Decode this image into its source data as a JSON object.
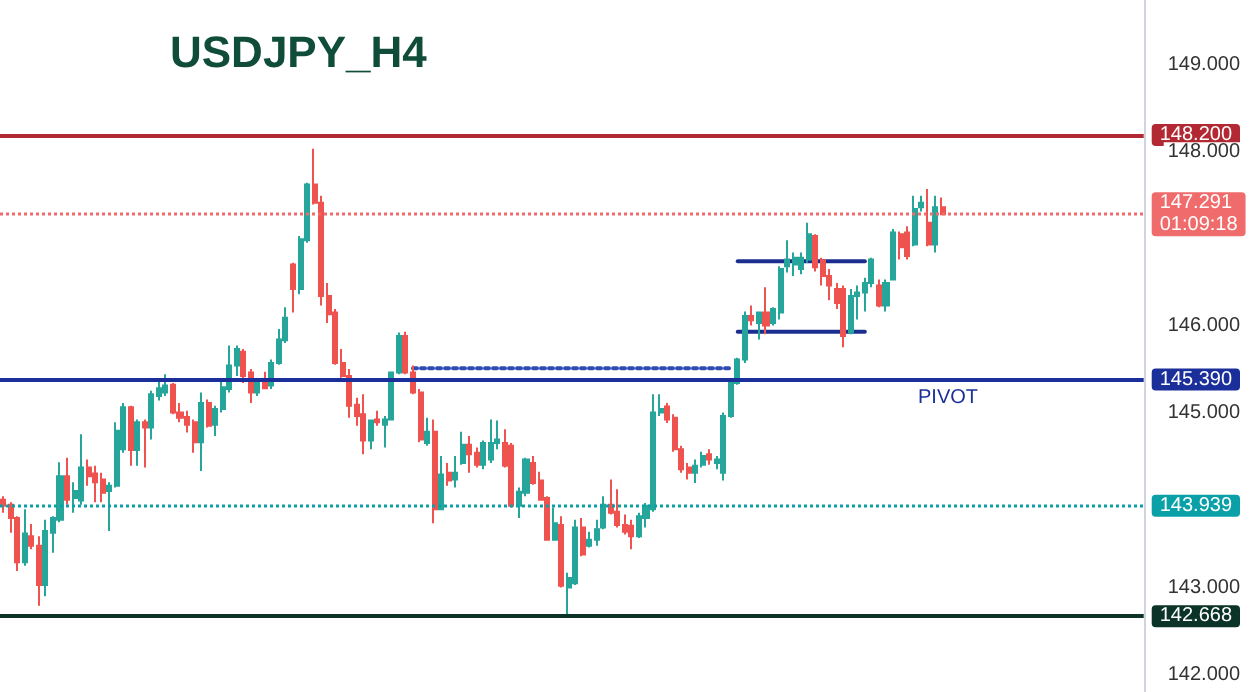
{
  "chart_data": {
    "type": "candlestick",
    "title": "USDJPY_H4",
    "categories": [
      null,
      null,
      null,
      null,
      null,
      null,
      null,
      null,
      null,
      null,
      null,
      null,
      null,
      null,
      null,
      null,
      null,
      null,
      null,
      null,
      null,
      null,
      null,
      null,
      null,
      null,
      null,
      null,
      null,
      null,
      null,
      null,
      null,
      null,
      null,
      null,
      null,
      null,
      null,
      null,
      null,
      null,
      null,
      null,
      null,
      null,
      null,
      null,
      null,
      null,
      null,
      null,
      null,
      null,
      null,
      null,
      null,
      null,
      null,
      null,
      null,
      null,
      null,
      null,
      null,
      null,
      null,
      null,
      null,
      null,
      null,
      null,
      null,
      null,
      null,
      null,
      null,
      null,
      null,
      null,
      null,
      null,
      null,
      null,
      null,
      null,
      null,
      null,
      null,
      null,
      null,
      null,
      null,
      null,
      null,
      null,
      null,
      null,
      null,
      null,
      null,
      null,
      null,
      null,
      null,
      null,
      null,
      null,
      null,
      null,
      null,
      null,
      null,
      null,
      null,
      null,
      null,
      null,
      null,
      null,
      null,
      null,
      null,
      null,
      null,
      null,
      null,
      null,
      null,
      null,
      null,
      null,
      null,
      null,
      null,
      null,
      null,
      null,
      null,
      null,
      null,
      null,
      null,
      null,
      null,
      null,
      null,
      null,
      null,
      null,
      null,
      null,
      null,
      null,
      null,
      null,
      null,
      null,
      null,
      null,
      null,
      null
    ],
    "colors": [
      "#ef5350",
      "#ef5350",
      "#ef5350",
      "#26a69a",
      "#ef5350",
      "#ef5350",
      "#26a69a",
      "#26a69a",
      "#26a69a",
      "#ef5350",
      "#26a69a",
      "#26a69a",
      "#ef5350",
      "#ef5350",
      "#ef5350",
      "#26a69a",
      "#26a69a",
      "#26a69a",
      "#ef5350",
      "#26a69a",
      "#ef5350",
      "#26a69a",
      "#26a69a",
      "#26a69a",
      "#ef5350",
      "#ef5350",
      "#ef5350",
      "#ef5350",
      "#26a69a",
      "#ef5350",
      "#26a69a",
      "#26a69a",
      "#26a69a",
      "#26a69a",
      "#ef5350",
      "#ef5350",
      "#26a69a",
      "#ef5350",
      "#26a69a",
      "#26a69a",
      "#26a69a",
      "#ef5350",
      "#26a69a",
      "#26a69a",
      "#ef5350",
      "#ef5350",
      "#ef5350",
      "#ef5350",
      "#ef5350",
      "#ef5350",
      "#ef5350",
      "#ef5350",
      "#26a69a",
      "#ef5350",
      "#26a69a",
      "#26a69a",
      "#26a69a",
      "#ef5350",
      "#ef5350",
      "#ef5350",
      "#26a69a",
      "#ef5350",
      "#26a69a",
      "#ef5350",
      "#26a69a",
      "#26a69a",
      "#ef5350",
      "#ef5350",
      "#26a69a",
      "#26a69a",
      "#26a69a",
      "#ef5350",
      "#ef5350",
      "#26a69a",
      "#26a69a",
      "#ef5350",
      "#ef5350",
      "#ef5350",
      "#26a69a",
      "#ef5350",
      "#26a69a",
      "#26a69a",
      "#ef5350",
      "#26a69a",
      "#26a69a",
      "#26a69a",
      "#ef5350",
      "#ef5350",
      "#ef5350",
      "#ef5350",
      "#26a69a",
      "#26a69a",
      "#26a69a",
      "#26a69a",
      "#ef5350",
      "#ef5350",
      "#ef5350",
      "#ef5350",
      "#26a69a",
      "#26a69a",
      "#ef5350",
      "#26a69a",
      "#26a69a",
      "#26a69a",
      "#26a69a",
      "#26a69a",
      "#ef5350",
      "#26a69a",
      "#ef5350",
      "#26a69a",
      "#26a69a",
      "#26a69a",
      "#26a69a",
      "#26a69a",
      "#26a69a",
      "#ef5350",
      "#ef5350",
      "#ef5350",
      "#ef5350",
      "#ef5350",
      "#26a69a",
      "#26a69a",
      "#26a69a",
      "#26a69a",
      "#ef5350",
      "#26a69a",
      "#26a69a",
      "#ef5350",
      "#ef5350",
      "#26a69a",
      "#26a69a",
      "#ef5350",
      "#26a69a",
      "#ef5350",
      null,
      null,
      null,
      null,
      null,
      null,
      null,
      null,
      null,
      null,
      null,
      null,
      null,
      null,
      null,
      null,
      null,
      null,
      null,
      null,
      null,
      null,
      null,
      null,
      null,
      null,
      null,
      null
    ],
    "ohlc": [
      [
        144.01,
        144.05,
        143.86,
        143.94
      ],
      [
        143.95,
        143.98,
        143.63,
        143.8
      ],
      [
        143.8,
        143.82,
        143.19,
        143.29
      ],
      [
        143.29,
        143.9,
        143.25,
        143.62
      ],
      [
        143.59,
        143.73,
        143.44,
        143.48
      ],
      [
        143.48,
        143.59,
        142.79,
        143.03
      ],
      [
        143.03,
        143.78,
        142.9,
        143.65
      ],
      [
        143.63,
        143.82,
        143.4,
        143.8
      ],
      [
        143.78,
        144.44,
        143.75,
        144.28
      ],
      [
        144.28,
        144.49,
        143.95,
        144.01
      ],
      [
        144.03,
        144.21,
        143.86,
        144.11
      ],
      [
        144.0,
        144.76,
        143.95,
        144.38
      ],
      [
        144.38,
        144.47,
        144.17,
        144.28
      ],
      [
        144.31,
        144.4,
        143.98,
        144.21
      ],
      [
        144.24,
        144.32,
        143.98,
        144.09
      ],
      [
        144.11,
        144.21,
        143.65,
        144.17
      ],
      [
        144.17,
        144.9,
        144.15,
        144.8
      ],
      [
        144.59,
        145.12,
        144.55,
        145.07
      ],
      [
        145.07,
        145.09,
        144.4,
        144.58
      ],
      [
        144.58,
        144.93,
        144.4,
        144.9
      ],
      [
        144.9,
        144.93,
        144.38,
        144.84
      ],
      [
        144.84,
        145.26,
        144.7,
        145.22
      ],
      [
        145.2,
        145.38,
        145.15,
        145.29
      ],
      [
        145.24,
        145.45,
        145.2,
        145.32
      ],
      [
        145.33,
        145.35,
        144.99,
        145.01
      ],
      [
        145.01,
        145.12,
        144.9,
        144.95
      ],
      [
        144.96,
        145.03,
        144.78,
        144.87
      ],
      [
        144.9,
        144.93,
        144.55,
        144.67
      ],
      [
        144.67,
        145.24,
        144.34,
        145.12
      ],
      [
        145.12,
        145.16,
        144.84,
        144.86
      ],
      [
        144.87,
        145.09,
        144.74,
        145.05
      ],
      [
        145.05,
        145.39,
        145.01,
        145.3
      ],
      [
        145.28,
        145.78,
        145.24,
        145.55
      ],
      [
        145.55,
        145.78,
        145.43,
        145.74
      ],
      [
        145.71,
        145.74,
        145.35,
        145.43
      ],
      [
        145.47,
        145.51,
        145.12,
        145.24
      ],
      [
        145.24,
        145.39,
        145.2,
        145.35
      ],
      [
        145.35,
        145.48,
        145.28,
        145.29
      ],
      [
        145.32,
        145.62,
        145.28,
        145.58
      ],
      [
        145.58,
        145.97,
        145.56,
        145.85
      ],
      [
        145.84,
        146.22,
        145.81,
        146.1
      ],
      [
        146.71,
        146.73,
        146.16,
        146.43
      ],
      [
        146.43,
        147.04,
        146.37,
        147.0
      ],
      [
        146.99,
        147.65,
        146.96,
        147.63
      ],
      [
        147.63,
        148.04,
        147.4,
        147.42
      ],
      [
        147.42,
        147.5,
        146.24,
        146.35
      ],
      [
        146.35,
        146.5,
        146.04,
        146.14
      ],
      [
        146.16,
        146.2,
        145.56,
        145.58
      ],
      [
        145.58,
        145.74,
        145.41,
        145.43
      ],
      [
        145.43,
        145.51,
        144.95,
        145.09
      ],
      [
        145.1,
        145.18,
        144.86,
        144.97
      ],
      [
        144.99,
        145.22,
        144.53,
        144.69
      ],
      [
        144.69,
        144.93,
        144.59,
        144.92
      ],
      [
        144.93,
        145.03,
        144.86,
        144.9
      ],
      [
        144.87,
        144.97,
        144.61,
        144.93
      ],
      [
        144.93,
        145.48,
        144.92,
        145.47
      ],
      [
        145.47,
        145.93,
        145.45,
        145.89
      ],
      [
        145.89,
        145.94,
        145.45,
        145.47
      ],
      [
        145.47,
        145.55,
        145.22,
        145.24
      ],
      [
        145.24,
        145.28,
        144.67,
        144.7
      ],
      [
        144.66,
        144.95,
        144.63,
        144.79
      ],
      [
        144.79,
        144.93,
        143.74,
        143.9
      ],
      [
        143.9,
        144.51,
        143.9,
        144.3
      ],
      [
        144.32,
        144.43,
        144.17,
        144.23
      ],
      [
        144.24,
        144.51,
        144.15,
        144.32
      ],
      [
        144.43,
        144.79,
        144.41,
        144.64
      ],
      [
        144.64,
        144.74,
        144.32,
        144.53
      ],
      [
        144.55,
        144.61,
        144.38,
        144.41
      ],
      [
        144.41,
        144.69,
        144.36,
        144.66
      ],
      [
        144.47,
        144.93,
        144.43,
        144.66
      ],
      [
        144.66,
        144.92,
        144.59,
        144.7
      ],
      [
        144.66,
        144.82,
        144.38,
        144.4
      ],
      [
        144.63,
        144.66,
        143.92,
        143.94
      ],
      [
        143.94,
        144.15,
        143.8,
        144.1
      ],
      [
        144.09,
        144.49,
        144.05,
        144.47
      ],
      [
        144.43,
        144.51,
        144.18,
        144.2
      ],
      [
        144.23,
        144.33,
        144.0,
        144.01
      ],
      [
        144.03,
        144.05,
        143.54,
        143.55
      ],
      [
        143.55,
        143.92,
        143.54,
        143.74
      ],
      [
        143.72,
        143.82,
        143.0,
        143.02
      ],
      [
        143.0,
        143.17,
        142.67,
        143.11
      ],
      [
        143.05,
        143.78,
        143.03,
        143.69
      ],
      [
        143.69,
        143.8,
        143.36,
        143.38
      ],
      [
        143.48,
        143.64,
        143.46,
        143.55
      ],
      [
        143.55,
        143.78,
        143.48,
        143.67
      ],
      [
        143.69,
        144.05,
        143.67,
        143.95
      ],
      [
        143.95,
        144.24,
        143.84,
        143.86
      ],
      [
        143.87,
        144.13,
        143.69,
        143.72
      ],
      [
        143.72,
        143.84,
        143.61,
        143.64
      ],
      [
        143.71,
        143.78,
        143.44,
        143.59
      ],
      [
        143.59,
        143.86,
        143.57,
        143.82
      ],
      [
        143.8,
        143.97,
        143.69,
        143.94
      ],
      [
        143.9,
        145.22,
        143.87,
        145.01
      ],
      [
        145.01,
        145.22,
        144.97,
        145.05
      ],
      [
        145.08,
        145.12,
        144.89,
        144.93
      ],
      [
        144.95,
        144.99,
        144.56,
        144.59
      ],
      [
        144.59,
        144.63,
        144.32,
        144.36
      ],
      [
        144.38,
        144.43,
        144.24,
        144.32
      ],
      [
        144.32,
        144.47,
        144.2,
        144.4
      ],
      [
        144.41,
        144.56,
        144.38,
        144.51
      ],
      [
        144.53,
        144.59,
        144.41,
        144.47
      ],
      [
        144.43,
        144.51,
        144.36,
        144.47
      ],
      [
        144.32,
        145.01,
        144.23,
        144.97
      ],
      [
        144.97,
        145.39,
        144.95,
        145.35
      ],
      [
        145.35,
        145.64,
        145.33,
        145.62
      ],
      [
        145.62,
        146.17,
        145.58,
        146.12
      ],
      [
        146.12,
        146.24,
        146.01,
        146.07
      ],
      [
        146.04,
        146.17,
        145.85,
        146.16
      ],
      [
        146.16,
        146.45,
        145.91,
        146.01
      ],
      [
        146.04,
        146.22,
        146.01,
        146.2
      ],
      [
        146.16,
        146.69,
        146.08,
        146.66
      ],
      [
        146.69,
        146.99,
        146.62,
        146.77
      ],
      [
        146.71,
        146.85,
        146.58,
        146.79
      ],
      [
        146.66,
        146.85,
        146.6,
        146.79
      ],
      [
        146.77,
        147.19,
        146.73,
        147.06
      ],
      [
        147.04,
        147.06,
        146.63,
        146.68
      ],
      [
        146.76,
        146.79,
        146.47,
        146.58
      ],
      [
        146.58,
        146.66,
        146.3,
        146.47
      ],
      [
        146.43,
        146.5,
        146.2,
        146.27
      ],
      [
        146.43,
        146.47,
        145.76,
        145.89
      ],
      [
        145.93,
        146.43,
        145.91,
        146.35
      ],
      [
        146.35,
        146.47,
        146.08,
        146.39
      ],
      [
        146.39,
        146.56,
        146.17,
        146.5
      ],
      [
        146.5,
        146.79,
        146.45,
        146.77
      ],
      [
        146.47,
        146.54,
        146.22,
        146.24
      ],
      [
        146.24,
        146.54,
        146.17,
        146.5
      ],
      [
        146.54,
        147.12,
        146.53,
        147.08
      ],
      [
        147.06,
        147.09,
        146.77,
        146.91
      ],
      [
        147.08,
        147.15,
        146.77,
        146.81
      ],
      [
        146.94,
        147.5,
        146.92,
        147.35
      ],
      [
        147.37,
        147.5,
        147.32,
        147.42
      ],
      [
        147.19,
        147.58,
        146.92,
        146.94
      ],
      [
        146.94,
        147.5,
        146.85,
        147.37
      ],
      [
        147.37,
        147.48,
        147.29,
        147.29
      ],
      null,
      null,
      null,
      null,
      null,
      null,
      null,
      null,
      null,
      null,
      null,
      null,
      null,
      null,
      null,
      null,
      null,
      null,
      null,
      null,
      null,
      null,
      null,
      null,
      null,
      null,
      null,
      null
    ],
    "series": [
      {
        "type": "line",
        "color": "#2e4bb3",
        "line_style": "dotted",
        "values": [
          null,
          null,
          null,
          null,
          null,
          null,
          null,
          null,
          null,
          null,
          null,
          null,
          null,
          null,
          null,
          null,
          null,
          null,
          null,
          null,
          null,
          null,
          null,
          null,
          null,
          null,
          null,
          null,
          null,
          null,
          null,
          null,
          null,
          null,
          null,
          null,
          null,
          null,
          null,
          null,
          null,
          null,
          null,
          null,
          null,
          null,
          null,
          null,
          null,
          null,
          null,
          null,
          null,
          null,
          null,
          null,
          null,
          null,
          145.52,
          145.52,
          145.52,
          145.52,
          145.52,
          145.52,
          145.52,
          145.52,
          145.52,
          145.52,
          145.52,
          145.52,
          145.52,
          145.52,
          145.52,
          145.52,
          145.52,
          145.52,
          145.52,
          145.52,
          145.52,
          145.52,
          145.52,
          145.52,
          145.52,
          145.52,
          145.52,
          145.52,
          145.52,
          145.52,
          145.52,
          145.52,
          145.52,
          145.52,
          145.52,
          145.52,
          145.52,
          145.52,
          145.52,
          145.52,
          145.52,
          145.52,
          145.52,
          145.52,
          145.52,
          145.52,
          null,
          null,
          null,
          null,
          null,
          null,
          null,
          null,
          null,
          null,
          null,
          null,
          null,
          null,
          null,
          null,
          null,
          null,
          null,
          null,
          null,
          null,
          null,
          null,
          null,
          null,
          null,
          null,
          null,
          null,
          null,
          null,
          null,
          null,
          null,
          null,
          null,
          null,
          null,
          null,
          null,
          null,
          null,
          null,
          null,
          null,
          null,
          null,
          null,
          null,
          null,
          null,
          null,
          null,
          null,
          null,
          null,
          null
        ]
      },
      {
        "type": "line",
        "color": "#1a2f8f",
        "line_style": "solid",
        "values": [
          null,
          null,
          null,
          null,
          null,
          null,
          null,
          null,
          null,
          null,
          null,
          null,
          null,
          null,
          null,
          null,
          null,
          null,
          null,
          null,
          null,
          null,
          null,
          null,
          null,
          null,
          null,
          null,
          null,
          null,
          null,
          null,
          null,
          null,
          null,
          null,
          null,
          null,
          null,
          null,
          null,
          null,
          null,
          null,
          null,
          null,
          null,
          null,
          null,
          null,
          null,
          null,
          null,
          null,
          null,
          null,
          null,
          null,
          null,
          null,
          null,
          null,
          null,
          null,
          null,
          null,
          null,
          null,
          null,
          null,
          null,
          null,
          null,
          null,
          null,
          null,
          null,
          null,
          null,
          null,
          null,
          null,
          null,
          null,
          null,
          null,
          null,
          null,
          null,
          null,
          null,
          null,
          null,
          null,
          null,
          null,
          null,
          null,
          null,
          null,
          null,
          null,
          null,
          null,
          146.75,
          146.75,
          146.75,
          146.75,
          146.75,
          146.75,
          146.75,
          146.75,
          146.75,
          146.75,
          146.75,
          146.75,
          146.75,
          146.75,
          146.75,
          146.75,
          146.75,
          146.75,
          146.75,
          null,
          null,
          null,
          null,
          null,
          null,
          null,
          null,
          null,
          null,
          null,
          null,
          null,
          null,
          null,
          null,
          null,
          null,
          null,
          null,
          null,
          null,
          null,
          null,
          null,
          null,
          null,
          null,
          null,
          null,
          null,
          null,
          null,
          null,
          null,
          null,
          null,
          null,
          null
        ]
      },
      {
        "type": "line",
        "color": "#1a2f8f",
        "line_style": "solid",
        "values": [
          null,
          null,
          null,
          null,
          null,
          null,
          null,
          null,
          null,
          null,
          null,
          null,
          null,
          null,
          null,
          null,
          null,
          null,
          null,
          null,
          null,
          null,
          null,
          null,
          null,
          null,
          null,
          null,
          null,
          null,
          null,
          null,
          null,
          null,
          null,
          null,
          null,
          null,
          null,
          null,
          null,
          null,
          null,
          null,
          null,
          null,
          null,
          null,
          null,
          null,
          null,
          null,
          null,
          null,
          null,
          null,
          null,
          null,
          null,
          null,
          null,
          null,
          null,
          null,
          null,
          null,
          null,
          null,
          null,
          null,
          null,
          null,
          null,
          null,
          null,
          null,
          null,
          null,
          null,
          null,
          null,
          null,
          null,
          null,
          null,
          null,
          null,
          null,
          null,
          null,
          null,
          null,
          null,
          null,
          null,
          null,
          null,
          null,
          null,
          null,
          null,
          null,
          null,
          null,
          145.94,
          145.94,
          145.94,
          145.94,
          145.94,
          145.94,
          145.94,
          145.94,
          145.94,
          145.94,
          145.94,
          145.94,
          145.94,
          145.94,
          145.94,
          145.94,
          145.94,
          145.94,
          145.94,
          null,
          null,
          null,
          null,
          null,
          null,
          null,
          null,
          null,
          null,
          null,
          null,
          null,
          null,
          null,
          null,
          null,
          null,
          null,
          null,
          null,
          null,
          null,
          null,
          null,
          null,
          null,
          null,
          null,
          null,
          null,
          null,
          null,
          null,
          null,
          null,
          null,
          null,
          null
        ]
      }
    ],
    "ref_lines": [
      {
        "axis": "y",
        "value": 148.2,
        "label": "148.200",
        "color": "#b22833",
        "line_style": "solid"
      },
      {
        "axis": "y",
        "value": 147.291,
        "label": "147.291\n01:09:18",
        "color": "#f06b6b",
        "line_style": "dotted"
      },
      {
        "axis": "y",
        "value": 145.39,
        "label": "145.390",
        "color": "#1a2f9a",
        "line_style": "solid"
      },
      {
        "axis": "y",
        "value": 143.939,
        "label": "143.939",
        "color": "#0aa0a8",
        "line_style": "dotted"
      },
      {
        "axis": "y",
        "value": 142.668,
        "label": "142.668",
        "color": "#0b3328",
        "line_style": "solid"
      }
    ],
    "annotations": [
      {
        "text": "PIVOT",
        "y": 145.39
      }
    ],
    "ylim": [
      141.8,
      149.75
    ],
    "yticks": [
      {
        "value": 142,
        "label": "142.000"
      },
      {
        "value": 143,
        "label": "143.000"
      },
      {
        "value": 145,
        "label": "145.000"
      },
      {
        "value": 146,
        "label": "146.000"
      },
      {
        "value": 148,
        "label": "148.000"
      },
      {
        "value": 149,
        "label": "149.000"
      }
    ],
    "tick_labels": "y"
  }
}
